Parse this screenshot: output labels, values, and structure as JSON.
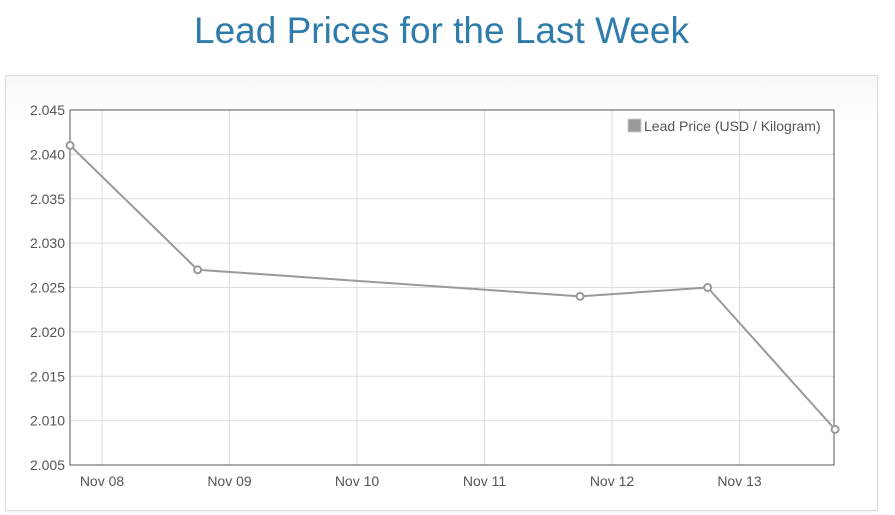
{
  "title": "Lead Prices for the Last Week",
  "chart_data": {
    "type": "line",
    "x_ticks": [
      "Nov 08",
      "Nov 09",
      "Nov 10",
      "Nov 11",
      "Nov 12",
      "Nov 13"
    ],
    "y_ticks": [
      "2.045",
      "2.040",
      "2.035",
      "2.030",
      "2.025",
      "2.020",
      "2.015",
      "2.010",
      "2.005"
    ],
    "ylim": [
      2.005,
      2.045
    ],
    "grid": true,
    "legend_position": "top-right",
    "series": [
      {
        "name": "Lead Price (USD / Kilogram)",
        "color": "#999999",
        "points": [
          {
            "x": "2023-11-07T18:00",
            "y": 2.041
          },
          {
            "x": "2023-11-08T18:00",
            "y": 2.027
          },
          {
            "x": "2023-11-11T18:00",
            "y": 2.024
          },
          {
            "x": "2023-11-12T18:00",
            "y": 2.025
          },
          {
            "x": "2023-11-13T18:00",
            "y": 2.009
          }
        ]
      }
    ]
  }
}
